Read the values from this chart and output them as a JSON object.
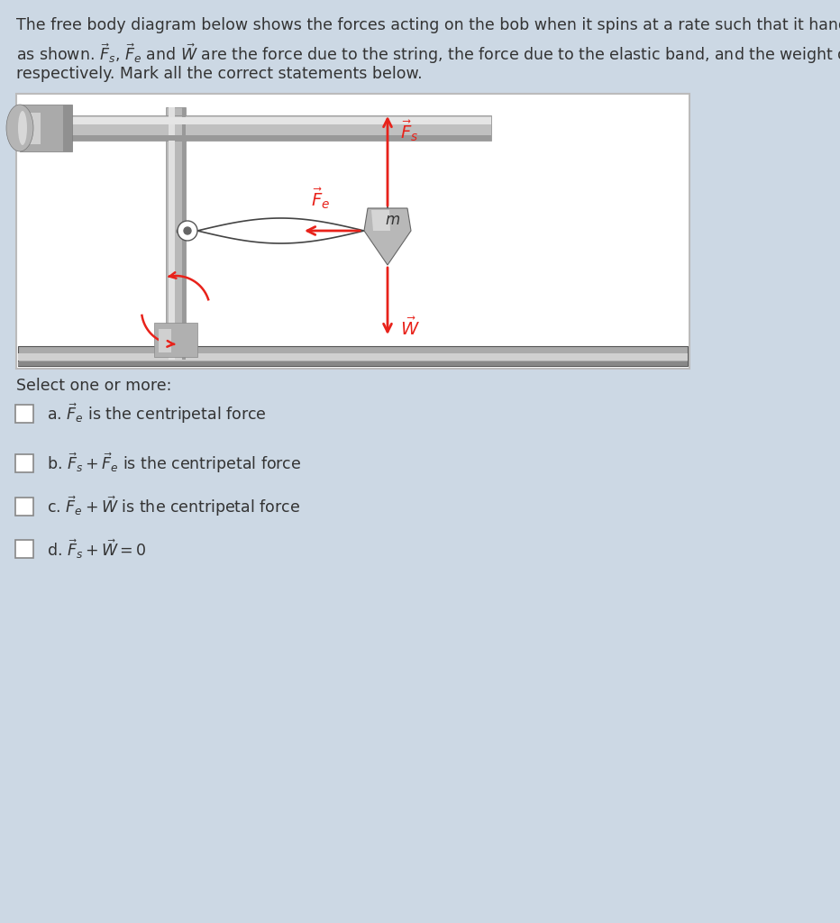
{
  "bg_color": "#ccd8e4",
  "diagram_bg": "#ffffff",
  "red_color": "#e8221a",
  "text_color": "#333333",
  "title_line1": "The free body diagram below shows the forces acting on the bob when it spins at a rate such that it hangs vertically",
  "title_line2": "as shown. $\\vec{F}_s$, $\\vec{F}_e$ and $\\vec{W}$ are the force due to the string, the force due to the elastic band, and the weight of the bob",
  "title_line3": "respectively. Mark all the correct statements below.",
  "select_text": "Select one or more:",
  "opt_a": "a. $\\vec{F}_e$ is the centripetal force",
  "opt_b": "b. $\\vec{F}_s + \\vec{F}_e$ is the centripetal force",
  "opt_c": "c. $\\vec{F}_e + \\vec{W}$ is the centripetal force",
  "opt_d": "d. $\\vec{F}_s + \\vec{W} = 0$"
}
